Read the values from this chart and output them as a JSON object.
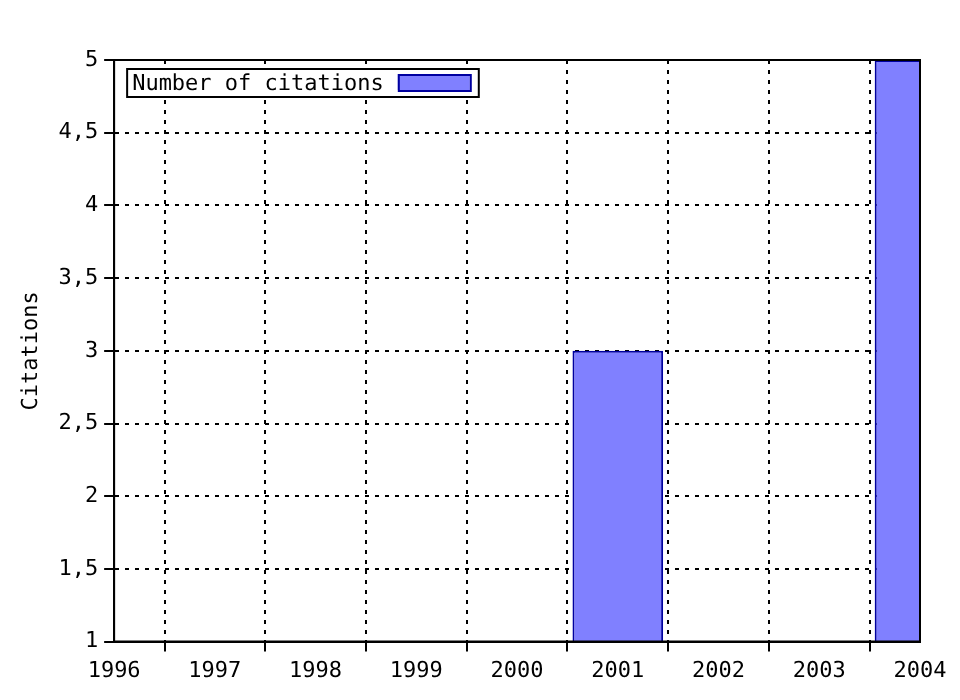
{
  "chart_data": {
    "type": "bar",
    "ylabel": "Citations",
    "x": [
      2001,
      2004
    ],
    "series": [
      {
        "name": "Number of citations",
        "color": "#8080ff",
        "values": [
          3,
          5
        ]
      }
    ],
    "xlim": [
      1996,
      2004
    ],
    "xticks": [
      1996,
      1997,
      1998,
      1999,
      2000,
      2001,
      2002,
      2003,
      2004
    ],
    "ylim": [
      1,
      5
    ],
    "yticks": [
      1,
      {
        "value": 1.5,
        "label": "1,5"
      },
      2,
      {
        "value": 2.5,
        "label": "2,5"
      },
      3,
      {
        "value": 3.5,
        "label": "3,5"
      },
      4,
      {
        "value": 4.5,
        "label": "4,5"
      },
      5
    ],
    "grid": true,
    "legend": "top left",
    "line_style": "dotted"
  }
}
